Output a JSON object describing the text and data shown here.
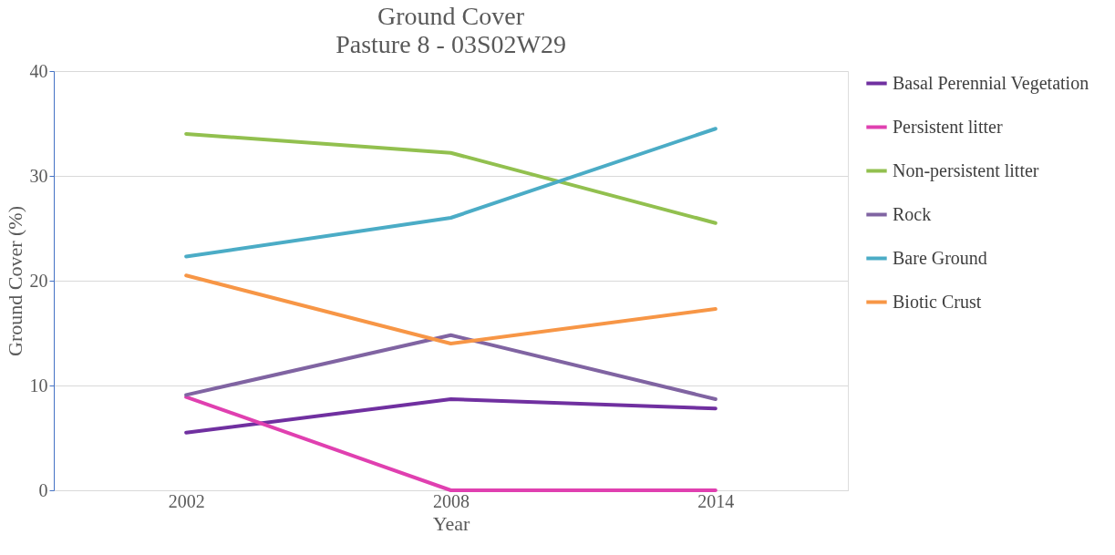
{
  "chart_data": {
    "type": "line",
    "title": "Ground Cover",
    "subtitle": "Pasture 8 - 03S02W29",
    "xlabel": "Year",
    "ylabel": "Ground Cover (%)",
    "categories": [
      "2002",
      "2008",
      "2014"
    ],
    "series": [
      {
        "name": "Basal Perennial Vegetation",
        "color": "#7030a0",
        "values": [
          5.5,
          8.7,
          7.8
        ]
      },
      {
        "name": "Persistent litter",
        "color": "#e040b0",
        "values": [
          8.9,
          0,
          0
        ]
      },
      {
        "name": "Non-persistent litter",
        "color": "#92c04f",
        "values": [
          34.0,
          32.2,
          25.5
        ]
      },
      {
        "name": "Rock",
        "color": "#8064a2",
        "values": [
          9.1,
          14.8,
          8.7
        ]
      },
      {
        "name": "Bare Ground",
        "color": "#4bacc6",
        "values": [
          22.3,
          26.0,
          34.5
        ]
      },
      {
        "name": "Biotic Crust",
        "color": "#f79646",
        "values": [
          20.5,
          14.0,
          17.3
        ]
      }
    ],
    "ylim": [
      0,
      40
    ],
    "yticks": [
      0,
      10,
      20,
      30,
      40
    ],
    "grid": "y",
    "legend": "right",
    "marker": "none",
    "line_style": "solid"
  }
}
